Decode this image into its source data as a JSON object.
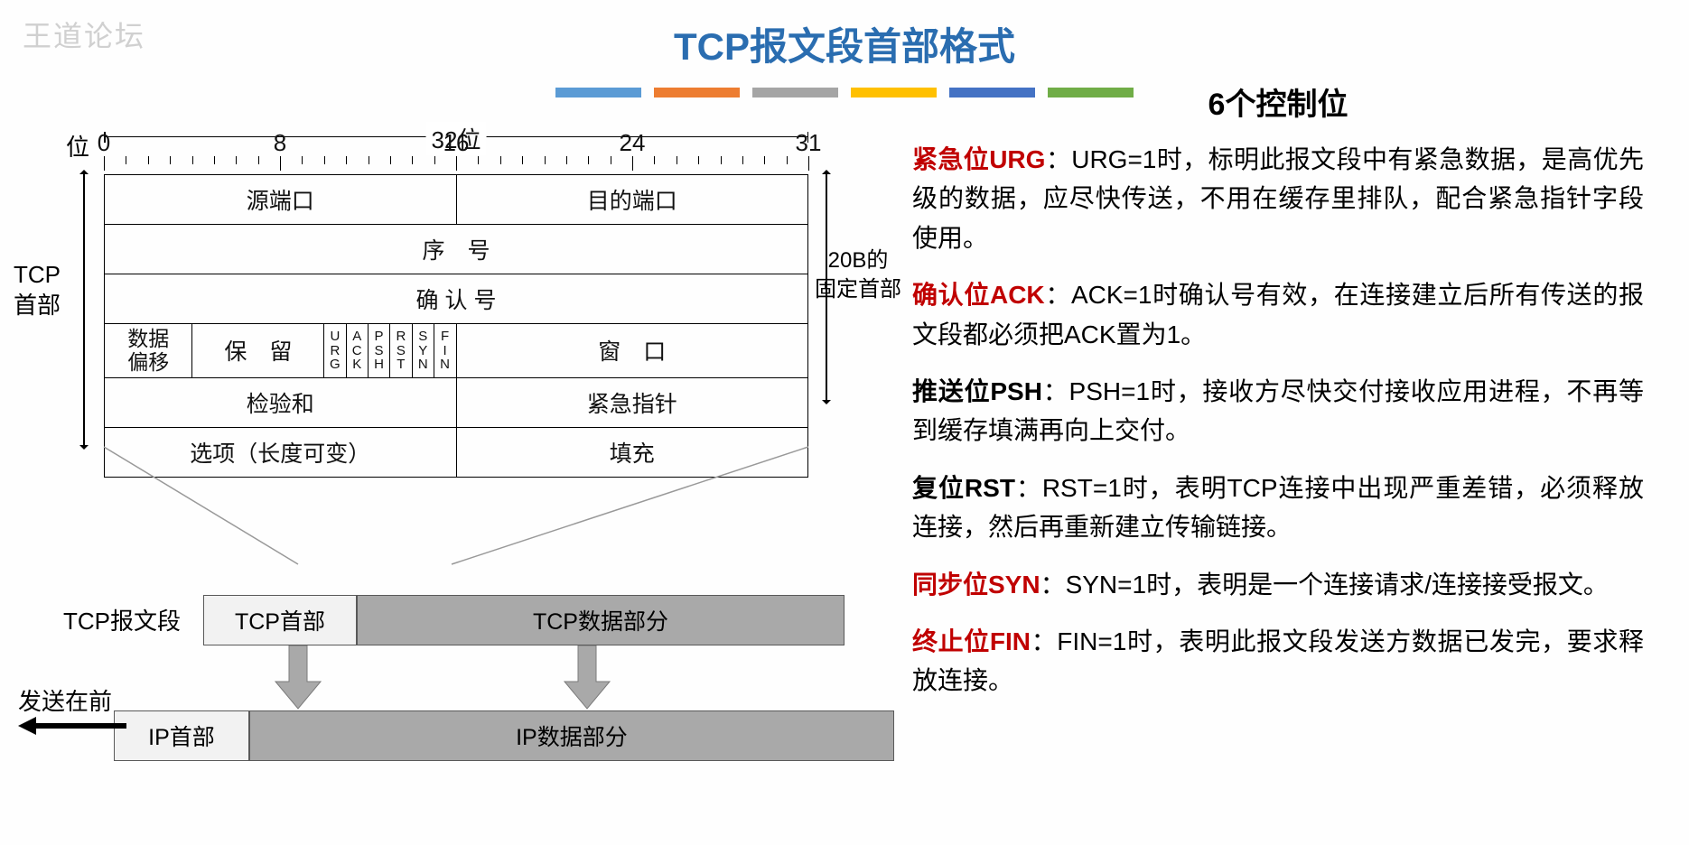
{
  "watermark": "王道论坛",
  "title": "TCP报文段首部格式",
  "color_bars": [
    "#5b9bd5",
    "#ed7d31",
    "#a5a5a5",
    "#ffc000",
    "#4472c4",
    "#70ad47"
  ],
  "ruler": {
    "caption": "32位",
    "prefix": "位",
    "labels": [
      {
        "text": "0",
        "pct": 0
      },
      {
        "text": "8",
        "pct": 25
      },
      {
        "text": "16",
        "pct": 50
      },
      {
        "text": "24",
        "pct": 75
      },
      {
        "text": "31",
        "pct": 100
      }
    ],
    "major_ticks_pct": [
      0,
      25,
      50,
      75,
      100
    ],
    "minor_count": 32
  },
  "header": {
    "left_label_1": "TCP",
    "left_label_2": "首部",
    "right_label_1": "20B的",
    "right_label_2": "固定首部",
    "rows": {
      "src_port": "源端口",
      "dst_port": "目的端口",
      "seq": "序　号",
      "ack": "确 认 号",
      "data_offset_1": "数据",
      "data_offset_2": "偏移",
      "reserved": "保　留",
      "flags": [
        "U\nR\nG",
        "A\nC\nK",
        "P\nS\nH",
        "R\nS\nT",
        "S\nY\nN",
        "F\nI\nN"
      ],
      "window": "窗　口",
      "checksum": "检验和",
      "urgptr": "紧急指针",
      "options": "选项（长度可变）",
      "padding": "填充"
    }
  },
  "segment": {
    "tcp_label": "TCP报文段",
    "tcp_head": "TCP首部",
    "tcp_data": "TCP数据部分",
    "ip_head": "IP首部",
    "ip_data": "IP数据部分",
    "send_label": "发送在前"
  },
  "controls": {
    "title": "6个控制位",
    "items": [
      {
        "key": "紧急位URG",
        "key_color": "red",
        "body": "：URG=1时，标明此报文段中有紧急数据，是高优先级的数据，应尽快传送，不用在缓存里排队，配合紧急指针字段使用。"
      },
      {
        "key": "确认位ACK",
        "key_color": "red",
        "body": "：ACK=1时确认号有效，在连接建立后所有传送的报文段都必须把ACK置为1。"
      },
      {
        "key": "推送位PSH",
        "key_color": "black",
        "body": "：PSH=1时，接收方尽快交付接收应用进程，不再等到缓存填满再向上交付。"
      },
      {
        "key": "复位RST",
        "key_color": "black",
        "body": "：RST=1时，表明TCP连接中出现严重差错，必须释放连接，然后再重新建立传输链接。"
      },
      {
        "key": "同步位SYN",
        "key_color": "red",
        "body": "：SYN=1时，表明是一个连接请求/连接接受报文。"
      },
      {
        "key": "终止位FIN",
        "key_color": "red",
        "body": "：FIN=1时，表明此报文段发送方数据已发完，要求释放连接。"
      }
    ]
  }
}
